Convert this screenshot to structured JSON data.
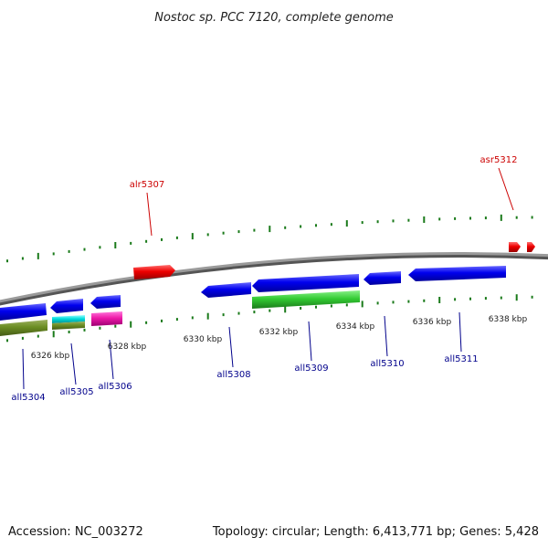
{
  "title": "Nostoc sp. PCC 7120, complete genome",
  "footer": {
    "accession": "Accession: NC_003272",
    "summary": "Topology: circular; Length: 6,413,771 bp; Genes: 5,428"
  },
  "colors": {
    "forward_label": "#cc0000",
    "reverse_label": "#00008b",
    "tick": "#1a7a1a",
    "backbone": "#7a7a7a"
  },
  "kbp_labels": [
    "6326 kbp",
    "6328 kbp",
    "6330 kbp",
    "6332 kbp",
    "6334 kbp",
    "6336 kbp",
    "6338 kbp"
  ],
  "gene_labels": {
    "alr5307": "alr5307",
    "asr5312": "asr5312",
    "all5304": "all5304",
    "all5305": "all5305",
    "all5306": "all5306",
    "all5308": "all5308",
    "all5309": "all5309",
    "all5310": "all5310",
    "all5311": "all5311"
  }
}
